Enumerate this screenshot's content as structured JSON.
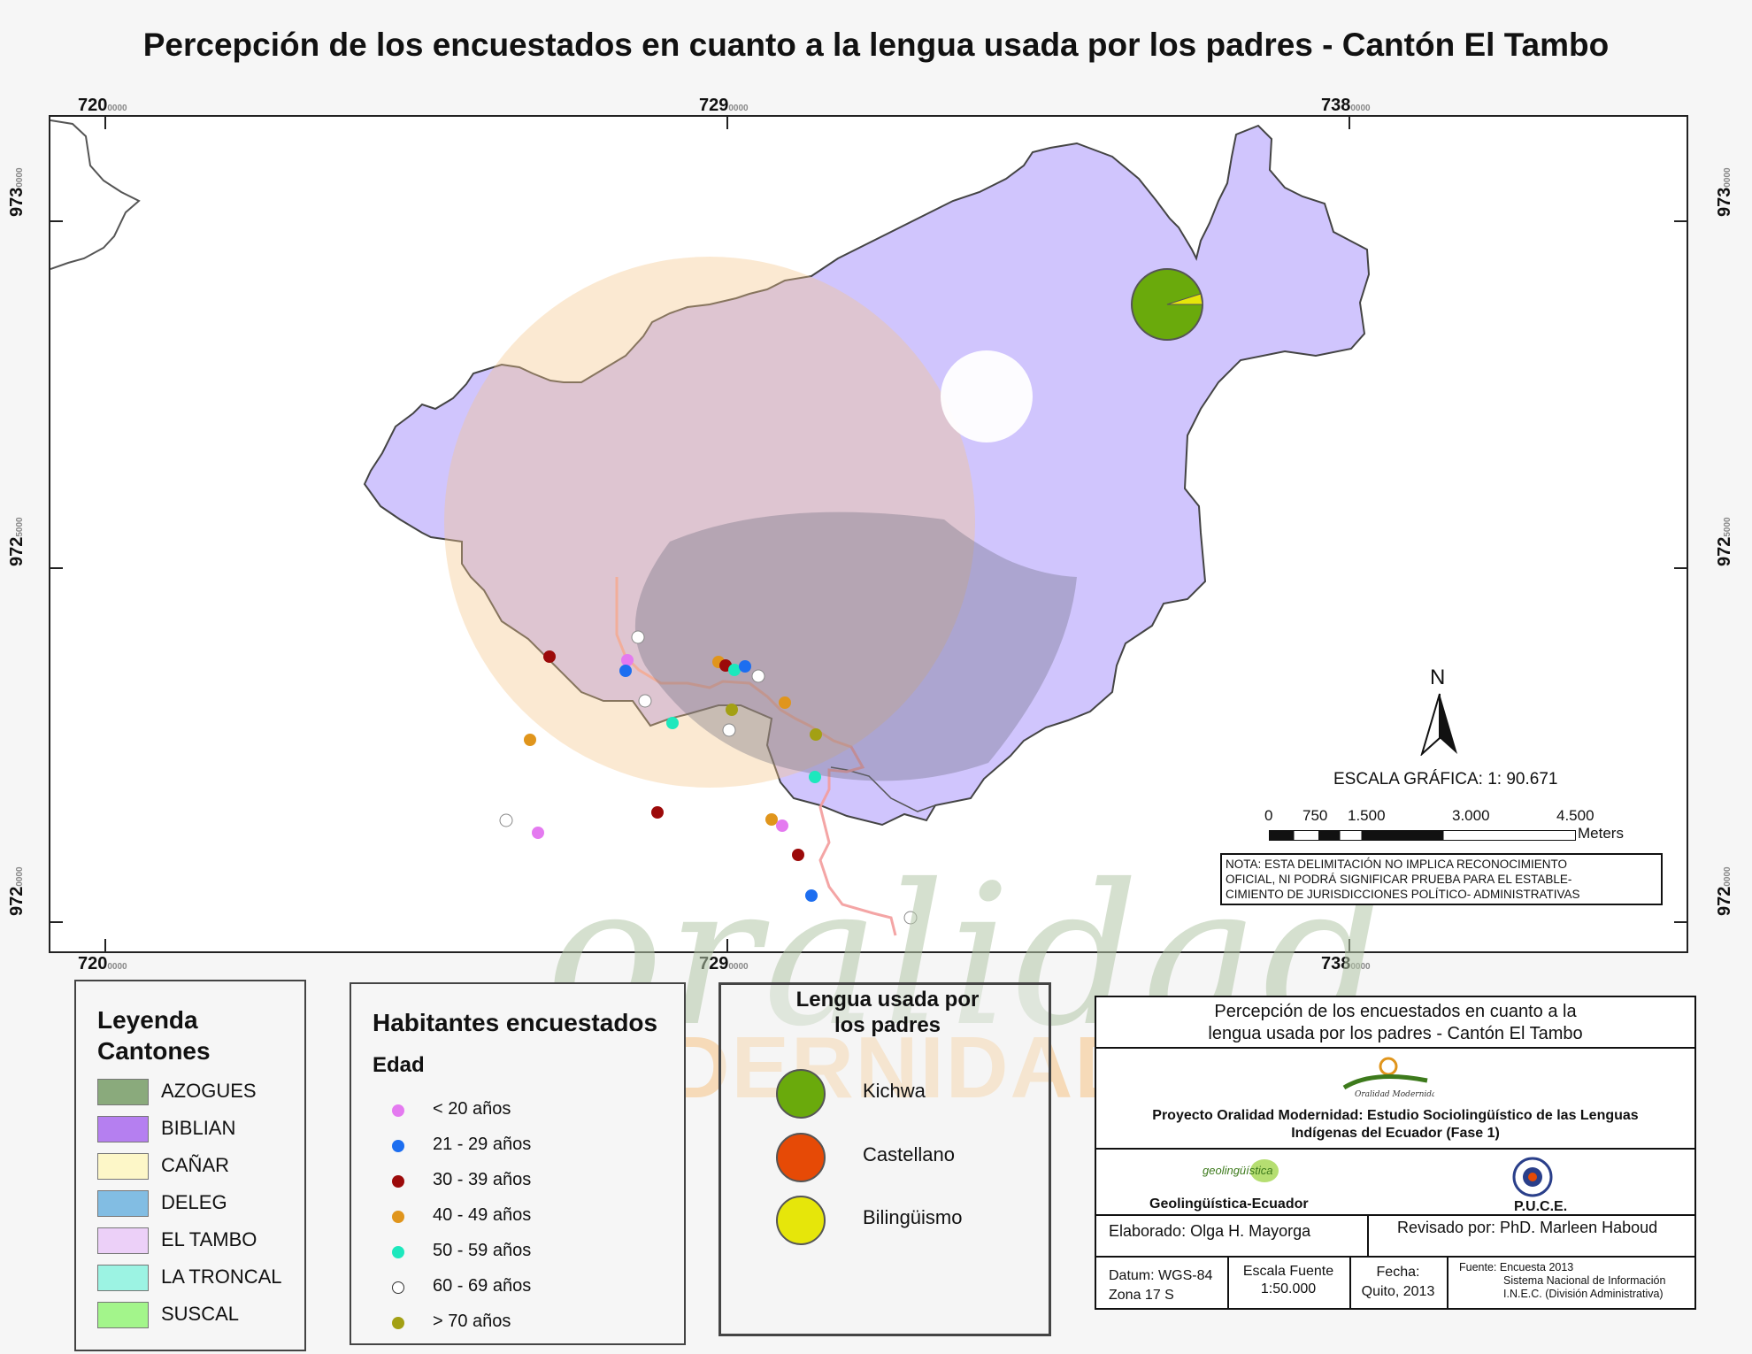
{
  "title": "Percepción de los encuestados en cuanto a la lengua usada por los padres - Cantón El Tambo",
  "grid": {
    "x_labels": [
      "720",
      "729",
      "738"
    ],
    "x_suffix": "0000",
    "y_labels": [
      "973",
      "972",
      "972"
    ],
    "y_suffix": "0000",
    "y_suffix_mid": "5000"
  },
  "map": {
    "north": "N",
    "scale_title": "ESCALA GRÁFICA: 1: 90.671",
    "scale_ticks": [
      "0",
      "750",
      "1.500",
      "3.000",
      "4.500"
    ],
    "scale_unit": "Meters",
    "note": [
      "NOTA: ESTA DELIMITACIÓN NO IMPLICA  RECONOCIMIENTO",
      "OFICIAL, NI PODRÁ SIGNIFICAR  PRUEBA PARA EL ESTABLE-",
      "CIMIENTO DE  JURISDICCIONES POLÍTICO- ADMINISTRATIVAS"
    ],
    "watermark_top": "oralidad",
    "watermark_bottom": "MODERNIDAD"
  },
  "legend_cantones": {
    "title_1": "Leyenda",
    "title_2": "Cantones",
    "items": [
      {
        "label": "AZOGUES",
        "color": "#8aaa7c"
      },
      {
        "label": "BIBLIAN",
        "color": "#b57ff0"
      },
      {
        "label": "CAÑAR",
        "color": "#fdf7c8"
      },
      {
        "label": "DELEG",
        "color": "#82bde3"
      },
      {
        "label": "EL TAMBO",
        "color": "#ecd0f8"
      },
      {
        "label": "LA TRONCAL",
        "color": "#9cf3e3"
      },
      {
        "label": "SUSCAL",
        "color": "#a3f58b"
      }
    ]
  },
  "legend_habitantes": {
    "title": "Habitantes encuestados",
    "subtitle": "Edad",
    "items": [
      {
        "label": "< 20 años",
        "color": "#e47af0"
      },
      {
        "label": "21 - 29 años",
        "color": "#1d6ef0"
      },
      {
        "label": "30 - 39 años",
        "color": "#9c0a0a"
      },
      {
        "label": "40 - 49 años",
        "color": "#e0951c"
      },
      {
        "label": "50 - 59 años",
        "color": "#1de8bd"
      },
      {
        "label": "60 - 69 años",
        "color": "#ffffff"
      },
      {
        "label": "> 70 años",
        "color": "#a3a014"
      }
    ]
  },
  "legend_lengua": {
    "title_1": "Lengua usada por",
    "title_2": "los padres",
    "items": [
      {
        "label": "Kichwa",
        "color": "#6aaa0c"
      },
      {
        "label": "Castellano",
        "color": "#e64a06"
      },
      {
        "label": "Bilingüismo",
        "color": "#e6e60a"
      }
    ]
  },
  "title_block": {
    "heading_1": "Percepción de los encuestados en cuanto a la",
    "heading_2": "lengua usada por los padres - Cantón El Tambo",
    "logo_caption": "Oralidad Modernidad",
    "project_1": "Proyecto Oralidad Modernidad: Estudio Sociolingüístico de las Lenguas",
    "project_2": "Indígenas del Ecuador  (Fase 1)",
    "org_left": "Geolingüística-Ecuador",
    "org_left_logo": "geolingüística",
    "org_right": "P.U.C.E.",
    "elaborado": "Elaborado: Olga H. Mayorga",
    "revisado": "Revisado por: PhD. Marleen Haboud",
    "datum_1": "Datum: WGS-84",
    "datum_2": "Zona 17 S",
    "escala_1": "Escala Fuente",
    "escala_2": "1:50.000",
    "fecha_1": "Fecha:",
    "fecha_2": "Quito, 2013",
    "fuente_1": "Fuente: Encuesta 2013",
    "fuente_2": "Sistema Nacional de Información",
    "fuente_3": "I.N.E.C. (División Administrativa)"
  },
  "survey_points": [
    {
      "age": "< 20 años",
      "color": "#e47af0"
    },
    {
      "age": "21 - 29 años",
      "color": "#1d6ef0"
    },
    {
      "age": "30 - 39 años",
      "color": "#9c0a0a"
    },
    {
      "age": "40 - 49 años",
      "color": "#e0951c"
    },
    {
      "age": "50 - 59 años",
      "color": "#1de8bd"
    },
    {
      "age": "60 - 69 años",
      "color": "#ffffff"
    },
    {
      "age": "> 70 años",
      "color": "#a3a014"
    }
  ]
}
